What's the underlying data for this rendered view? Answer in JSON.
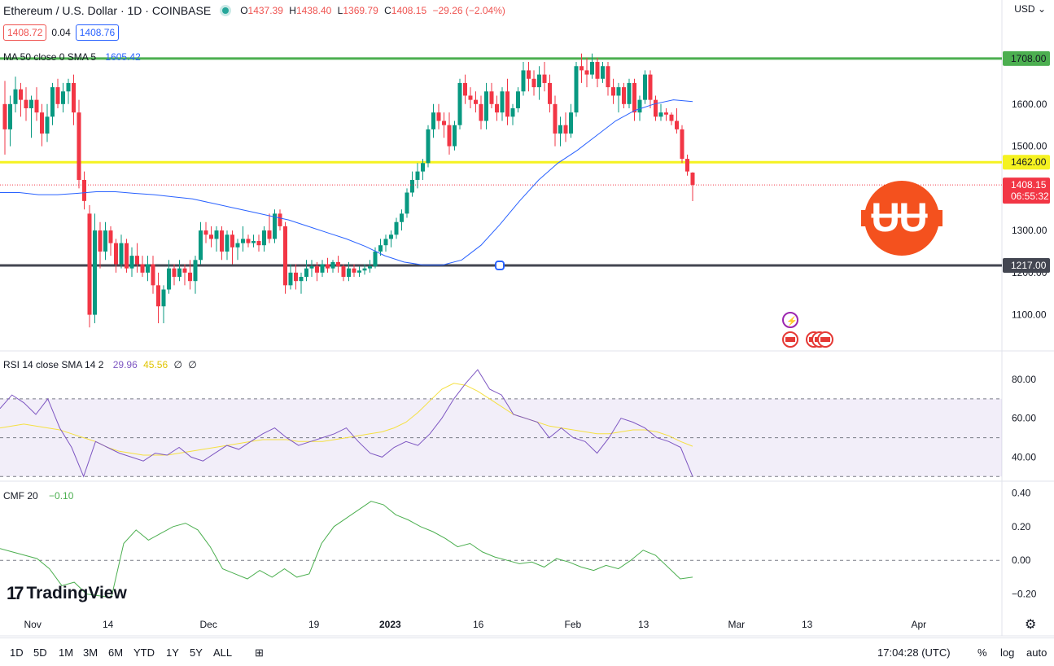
{
  "header": {
    "symbol": "Ethereum / U.S. Dollar · 1D · COINBASE",
    "open_label": "O",
    "open": "1437.39",
    "high_label": "H",
    "high": "1438.40",
    "low_label": "L",
    "low": "1369.79",
    "close_label": "C",
    "close": "1408.15",
    "change": "−29.26 (−2.04%)",
    "bid": "1408.72",
    "spread": "0.04",
    "ask": "1408.76",
    "currency": "USD",
    "ma_label": "MA 50 close 0 SMA 5",
    "ma_value": "1605.42"
  },
  "rsi": {
    "label": "RSI 14 close SMA 14 2",
    "value": "29.96",
    "sma_value": "45.56",
    "extra1": "∅",
    "extra2": "∅"
  },
  "cmf": {
    "label": "CMF 20",
    "value": "−0.10"
  },
  "price_axis": {
    "ticks": [
      "1600.00",
      "1500.00",
      "1300.00",
      "1200.00",
      "1100.00"
    ],
    "ticks_num": [
      1600,
      1500,
      1300,
      1200,
      1100
    ],
    "labels": [
      {
        "text": "1708.00",
        "value": 1708,
        "color": "#4caf50"
      },
      {
        "text": "1462.00",
        "value": 1462,
        "color": "#f5f221"
      },
      {
        "text": "1217.00",
        "value": 1217,
        "color": "#434651"
      }
    ],
    "last_price": "1408.15",
    "countdown": "06:55:32"
  },
  "rsi_axis": [
    "80.00",
    "60.00",
    "40.00"
  ],
  "cmf_axis": [
    "0.40",
    "0.20",
    "0.00",
    "−0.20"
  ],
  "time_axis": [
    "Nov",
    "14",
    "Dec",
    "19",
    "2023",
    "16",
    "Feb",
    "13",
    "Mar",
    "13",
    "Apr"
  ],
  "timeframes": [
    "1D",
    "5D",
    "1M",
    "3M",
    "6M",
    "YTD",
    "1Y",
    "5Y",
    "ALL"
  ],
  "clock": "17:04:28 (UTC)",
  "controls": {
    "percent": "%",
    "log": "log",
    "auto": "auto"
  },
  "logo_text": "TradingView",
  "colors": {
    "up": "#089981",
    "down": "#f23645",
    "ma": "#2962ff",
    "rsi": "#7e57c2",
    "rsi_sma": "#f5e042",
    "cmf": "#4caf50"
  },
  "chart_data": {
    "type": "candlestick",
    "title": "Ethereum / U.S. Dollar · 1D · COINBASE",
    "x_ticks": [
      "Nov",
      "14",
      "Dec",
      "19",
      "2023",
      "16",
      "Feb",
      "13",
      "Mar",
      "13",
      "Apr"
    ],
    "ylim": [
      1020,
      1760
    ],
    "horizontal_levels": [
      1708,
      1462,
      1217
    ],
    "candles": [
      [
        1600,
        1655,
        1480,
        1540
      ],
      [
        1540,
        1620,
        1500,
        1600
      ],
      [
        1600,
        1665,
        1580,
        1635
      ],
      [
        1635,
        1650,
        1570,
        1610
      ],
      [
        1610,
        1640,
        1560,
        1590
      ],
      [
        1590,
        1620,
        1520,
        1610
      ],
      [
        1610,
        1640,
        1560,
        1580
      ],
      [
        1580,
        1600,
        1500,
        1530
      ],
      [
        1530,
        1600,
        1510,
        1570
      ],
      [
        1570,
        1650,
        1550,
        1640
      ],
      [
        1640,
        1660,
        1590,
        1600
      ],
      [
        1600,
        1650,
        1580,
        1630
      ],
      [
        1630,
        1660,
        1600,
        1650
      ],
      [
        1650,
        1670,
        1550,
        1580
      ],
      [
        1580,
        1610,
        1400,
        1420
      ],
      [
        1420,
        1440,
        1350,
        1370
      ],
      [
        1340,
        1360,
        1070,
        1100
      ],
      [
        1100,
        1340,
        1080,
        1300
      ],
      [
        1300,
        1320,
        1210,
        1250
      ],
      [
        1250,
        1320,
        1230,
        1300
      ],
      [
        1300,
        1310,
        1240,
        1270
      ],
      [
        1270,
        1280,
        1200,
        1220
      ],
      [
        1220,
        1290,
        1210,
        1270
      ],
      [
        1270,
        1280,
        1200,
        1210
      ],
      [
        1210,
        1260,
        1190,
        1240
      ],
      [
        1240,
        1270,
        1200,
        1220
      ],
      [
        1220,
        1240,
        1190,
        1200
      ],
      [
        1200,
        1240,
        1180,
        1220
      ],
      [
        1220,
        1240,
        1150,
        1170
      ],
      [
        1170,
        1200,
        1080,
        1120
      ],
      [
        1120,
        1170,
        1080,
        1160
      ],
      [
        1160,
        1230,
        1150,
        1210
      ],
      [
        1210,
        1220,
        1170,
        1190
      ],
      [
        1190,
        1230,
        1180,
        1210
      ],
      [
        1210,
        1220,
        1170,
        1200
      ],
      [
        1200,
        1230,
        1160,
        1180
      ],
      [
        1180,
        1240,
        1150,
        1230
      ],
      [
        1230,
        1320,
        1220,
        1300
      ],
      [
        1300,
        1320,
        1270,
        1290
      ],
      [
        1290,
        1310,
        1260,
        1280
      ],
      [
        1280,
        1310,
        1250,
        1300
      ],
      [
        1300,
        1310,
        1230,
        1250
      ],
      [
        1250,
        1300,
        1230,
        1290
      ],
      [
        1290,
        1300,
        1220,
        1260
      ],
      [
        1260,
        1280,
        1230,
        1270
      ],
      [
        1270,
        1310,
        1250,
        1280
      ],
      [
        1280,
        1290,
        1260,
        1270
      ],
      [
        1270,
        1290,
        1260,
        1275
      ],
      [
        1275,
        1290,
        1250,
        1265
      ],
      [
        1265,
        1310,
        1250,
        1300
      ],
      [
        1300,
        1340,
        1270,
        1280
      ],
      [
        1280,
        1350,
        1270,
        1340
      ],
      [
        1340,
        1350,
        1300,
        1310
      ],
      [
        1310,
        1320,
        1150,
        1170
      ],
      [
        1170,
        1220,
        1160,
        1200
      ],
      [
        1200,
        1220,
        1160,
        1180
      ],
      [
        1180,
        1200,
        1150,
        1190
      ],
      [
        1190,
        1230,
        1180,
        1210
      ],
      [
        1210,
        1230,
        1190,
        1215
      ],
      [
        1215,
        1225,
        1180,
        1200
      ],
      [
        1200,
        1230,
        1190,
        1220
      ],
      [
        1220,
        1235,
        1200,
        1210
      ],
      [
        1210,
        1230,
        1200,
        1225
      ],
      [
        1225,
        1240,
        1200,
        1215
      ],
      [
        1215,
        1220,
        1180,
        1190
      ],
      [
        1190,
        1225,
        1180,
        1210
      ],
      [
        1210,
        1220,
        1190,
        1200
      ],
      [
        1200,
        1215,
        1190,
        1205
      ],
      [
        1205,
        1220,
        1195,
        1210
      ],
      [
        1210,
        1230,
        1200,
        1215
      ],
      [
        1215,
        1260,
        1210,
        1250
      ],
      [
        1250,
        1280,
        1240,
        1265
      ],
      [
        1265,
        1290,
        1250,
        1280
      ],
      [
        1280,
        1300,
        1260,
        1290
      ],
      [
        1290,
        1330,
        1280,
        1320
      ],
      [
        1320,
        1350,
        1300,
        1340
      ],
      [
        1340,
        1400,
        1330,
        1390
      ],
      [
        1390,
        1440,
        1380,
        1420
      ],
      [
        1420,
        1460,
        1400,
        1440
      ],
      [
        1440,
        1470,
        1420,
        1460
      ],
      [
        1460,
        1550,
        1450,
        1540
      ],
      [
        1540,
        1600,
        1520,
        1580
      ],
      [
        1580,
        1600,
        1540,
        1560
      ],
      [
        1560,
        1580,
        1520,
        1550
      ],
      [
        1550,
        1580,
        1480,
        1500
      ],
      [
        1500,
        1560,
        1490,
        1550
      ],
      [
        1550,
        1660,
        1540,
        1650
      ],
      [
        1650,
        1670,
        1600,
        1620
      ],
      [
        1620,
        1640,
        1590,
        1610
      ],
      [
        1610,
        1630,
        1580,
        1600
      ],
      [
        1600,
        1620,
        1540,
        1560
      ],
      [
        1560,
        1650,
        1540,
        1630
      ],
      [
        1630,
        1650,
        1590,
        1600
      ],
      [
        1600,
        1620,
        1560,
        1580
      ],
      [
        1580,
        1640,
        1560,
        1630
      ],
      [
        1630,
        1660,
        1550,
        1570
      ],
      [
        1570,
        1600,
        1550,
        1590
      ],
      [
        1590,
        1640,
        1580,
        1630
      ],
      [
        1630,
        1700,
        1620,
        1680
      ],
      [
        1680,
        1700,
        1630,
        1660
      ],
      [
        1660,
        1680,
        1620,
        1640
      ],
      [
        1640,
        1690,
        1610,
        1670
      ],
      [
        1670,
        1700,
        1630,
        1650
      ],
      [
        1650,
        1670,
        1580,
        1600
      ],
      [
        1600,
        1620,
        1500,
        1530
      ],
      [
        1530,
        1570,
        1500,
        1550
      ],
      [
        1550,
        1580,
        1510,
        1530
      ],
      [
        1530,
        1600,
        1520,
        1580
      ],
      [
        1580,
        1700,
        1570,
        1690
      ],
      [
        1690,
        1720,
        1650,
        1680
      ],
      [
        1680,
        1710,
        1640,
        1670
      ],
      [
        1670,
        1720,
        1660,
        1700
      ],
      [
        1700,
        1710,
        1640,
        1660
      ],
      [
        1660,
        1700,
        1650,
        1690
      ],
      [
        1690,
        1700,
        1620,
        1640
      ],
      [
        1640,
        1660,
        1600,
        1620
      ],
      [
        1620,
        1650,
        1580,
        1640
      ],
      [
        1640,
        1650,
        1590,
        1600
      ],
      [
        1600,
        1660,
        1590,
        1650
      ],
      [
        1650,
        1660,
        1560,
        1580
      ],
      [
        1580,
        1620,
        1560,
        1610
      ],
      [
        1610,
        1680,
        1600,
        1670
      ],
      [
        1670,
        1680,
        1590,
        1610
      ],
      [
        1610,
        1620,
        1560,
        1570
      ],
      [
        1570,
        1600,
        1560,
        1580
      ],
      [
        1580,
        1590,
        1560,
        1575
      ],
      [
        1575,
        1580,
        1550,
        1560
      ],
      [
        1560,
        1590,
        1530,
        1540
      ],
      [
        1540,
        1550,
        1460,
        1470
      ],
      [
        1470,
        1480,
        1430,
        1440
      ],
      [
        1437.39,
        1438.4,
        1369.79,
        1408.15
      ]
    ],
    "ma_50": [
      1390,
      1390,
      1385,
      1385,
      1388,
      1392,
      1392,
      1388,
      1385,
      1380,
      1375,
      1365,
      1355,
      1345,
      1335,
      1325,
      1310,
      1295,
      1280,
      1262,
      1240,
      1225,
      1218,
      1218,
      1230,
      1265,
      1315,
      1370,
      1420,
      1460,
      1490,
      1525,
      1560,
      1585,
      1600,
      1610,
      1606
    ],
    "rsi_values": [
      65,
      72,
      68,
      62,
      70,
      55,
      45,
      30,
      48,
      45,
      42,
      40,
      38,
      42,
      41,
      45,
      40,
      38,
      42,
      46,
      44,
      48,
      52,
      55,
      50,
      46,
      48,
      50,
      52,
      55,
      48,
      42,
      40,
      45,
      48,
      46,
      52,
      60,
      70,
      78,
      85,
      75,
      72,
      62,
      60,
      58,
      50,
      55,
      50,
      48,
      42,
      50,
      60,
      58,
      55,
      50,
      48,
      45,
      30
    ],
    "rsi_sma_values": [
      55,
      56,
      57,
      56,
      55,
      54,
      52,
      50,
      48,
      45,
      43,
      42,
      41,
      41,
      41,
      42,
      43,
      44,
      45,
      46,
      47,
      48,
      49,
      49,
      49,
      48,
      48,
      48,
      49,
      50,
      51,
      52,
      53,
      55,
      58,
      63,
      69,
      75,
      78,
      77,
      74,
      70,
      66,
      62,
      60,
      58,
      56,
      55,
      54,
      53,
      52,
      52,
      53,
      54,
      54,
      53,
      51,
      48,
      45.56
    ],
    "rsi_ylim": [
      28,
      88
    ],
    "cmf_values": [
      0.07,
      0.05,
      0.03,
      0.01,
      -0.05,
      -0.15,
      -0.13,
      -0.2,
      -0.21,
      -0.22,
      0.1,
      0.18,
      0.12,
      0.16,
      0.2,
      0.22,
      0.18,
      0.08,
      -0.05,
      -0.08,
      -0.11,
      -0.06,
      -0.1,
      -0.05,
      -0.1,
      -0.08,
      0.1,
      0.2,
      0.25,
      0.3,
      0.35,
      0.33,
      0.27,
      0.24,
      0.2,
      0.17,
      0.13,
      0.08,
      0.1,
      0.05,
      0.02,
      0.0,
      -0.02,
      -0.01,
      -0.04,
      0.01,
      -0.01,
      -0.04,
      -0.06,
      -0.03,
      -0.05,
      0.0,
      0.06,
      0.03,
      -0.04,
      -0.11,
      -0.1
    ],
    "cmf_ylim": [
      -0.25,
      0.45
    ]
  }
}
